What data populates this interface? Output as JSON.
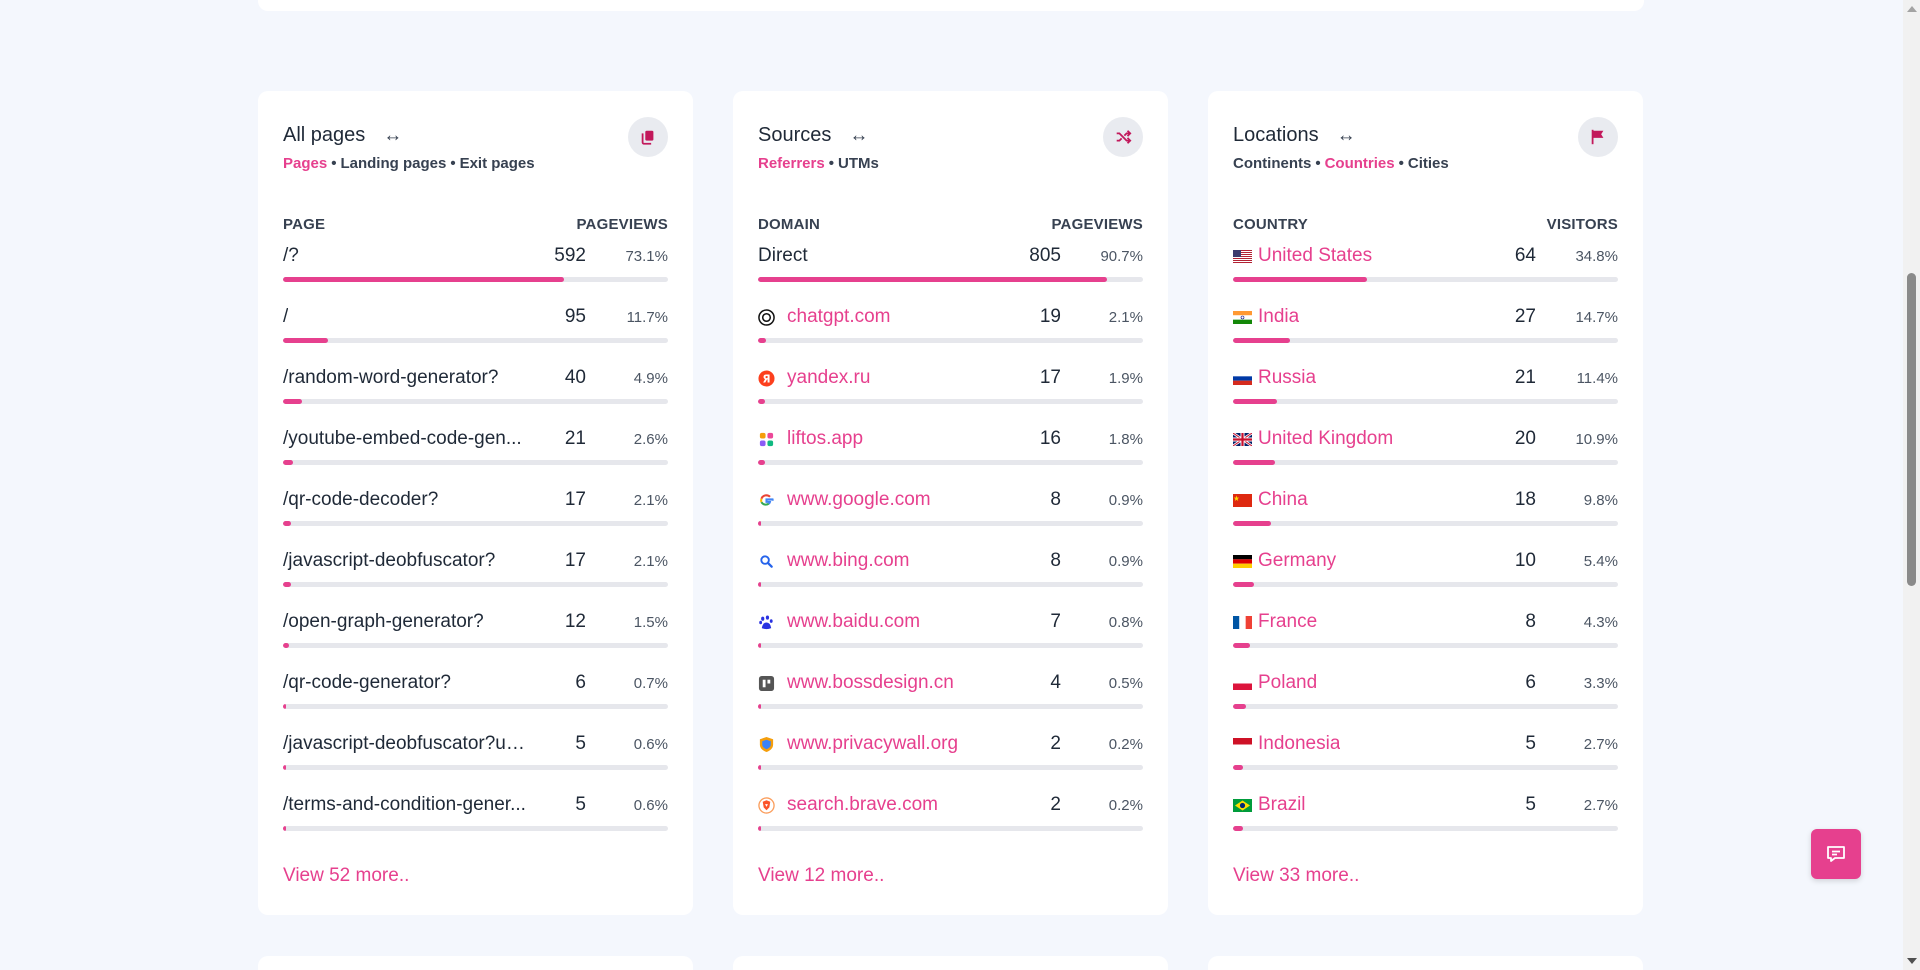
{
  "pages": {
    "title": "All pages",
    "tabs": [
      {
        "label": "Pages",
        "active": true
      },
      {
        "label": "Landing pages",
        "active": false
      },
      {
        "label": "Exit pages",
        "active": false
      }
    ],
    "col_label": "PAGE",
    "col_value": "PAGEVIEWS",
    "rows": [
      {
        "label": "/?",
        "value": "592",
        "pct": "73.1%",
        "fraction": 0.731
      },
      {
        "label": "/",
        "value": "95",
        "pct": "11.7%",
        "fraction": 0.117
      },
      {
        "label": "/random-word-generator?",
        "value": "40",
        "pct": "4.9%",
        "fraction": 0.049
      },
      {
        "label": "/youtube-embed-code-gen...",
        "value": "21",
        "pct": "2.6%",
        "fraction": 0.026
      },
      {
        "label": "/qr-code-decoder?",
        "value": "17",
        "pct": "2.1%",
        "fraction": 0.021
      },
      {
        "label": "/javascript-deobfuscator?",
        "value": "17",
        "pct": "2.1%",
        "fraction": 0.021
      },
      {
        "label": "/open-graph-generator?",
        "value": "12",
        "pct": "1.5%",
        "fraction": 0.015
      },
      {
        "label": "/qr-code-generator?",
        "value": "6",
        "pct": "0.7%",
        "fraction": 0.007
      },
      {
        "label": "/javascript-deobfuscator?ut...",
        "value": "5",
        "pct": "0.6%",
        "fraction": 0.006
      },
      {
        "label": "/terms-and-condition-gener...",
        "value": "5",
        "pct": "0.6%",
        "fraction": 0.006
      }
    ],
    "view_more": "View 52 more.."
  },
  "sources": {
    "title": "Sources",
    "tabs": [
      {
        "label": "Referrers",
        "active": true
      },
      {
        "label": "UTMs",
        "active": false
      }
    ],
    "col_label": "DOMAIN",
    "col_value": "PAGEVIEWS",
    "rows": [
      {
        "label": "Direct",
        "value": "805",
        "pct": "90.7%",
        "fraction": 0.907,
        "icon": "none",
        "link": false
      },
      {
        "label": "chatgpt.com",
        "value": "19",
        "pct": "2.1%",
        "fraction": 0.021,
        "icon": "chatgpt-icon",
        "link": true
      },
      {
        "label": "yandex.ru",
        "value": "17",
        "pct": "1.9%",
        "fraction": 0.019,
        "icon": "yandex-icon",
        "link": true
      },
      {
        "label": "liftos.app",
        "value": "16",
        "pct": "1.8%",
        "fraction": 0.018,
        "icon": "liftos-icon",
        "link": true
      },
      {
        "label": "www.google.com",
        "value": "8",
        "pct": "0.9%",
        "fraction": 0.009,
        "icon": "google-icon",
        "link": true
      },
      {
        "label": "www.bing.com",
        "value": "8",
        "pct": "0.9%",
        "fraction": 0.009,
        "icon": "bing-search-icon",
        "link": true
      },
      {
        "label": "www.baidu.com",
        "value": "7",
        "pct": "0.8%",
        "fraction": 0.008,
        "icon": "baidu-icon",
        "link": true
      },
      {
        "label": "www.bossdesign.cn",
        "value": "4",
        "pct": "0.5%",
        "fraction": 0.005,
        "icon": "bossdesign-icon",
        "link": true
      },
      {
        "label": "www.privacywall.org",
        "value": "2",
        "pct": "0.2%",
        "fraction": 0.002,
        "icon": "privacywall-icon",
        "link": true
      },
      {
        "label": "search.brave.com",
        "value": "2",
        "pct": "0.2%",
        "fraction": 0.002,
        "icon": "brave-icon",
        "link": true
      }
    ],
    "view_more": "View 12 more.."
  },
  "locations": {
    "title": "Locations",
    "tabs": [
      {
        "label": "Continents",
        "active": false
      },
      {
        "label": "Countries",
        "active": true
      },
      {
        "label": "Cities",
        "active": false
      }
    ],
    "col_label": "COUNTRY",
    "col_value": "VISITORS",
    "rows": [
      {
        "label": "United States",
        "value": "64",
        "pct": "34.8%",
        "fraction": 0.348,
        "flag": "us"
      },
      {
        "label": "India",
        "value": "27",
        "pct": "14.7%",
        "fraction": 0.147,
        "flag": "in"
      },
      {
        "label": "Russia",
        "value": "21",
        "pct": "11.4%",
        "fraction": 0.114,
        "flag": "ru"
      },
      {
        "label": "United Kingdom",
        "value": "20",
        "pct": "10.9%",
        "fraction": 0.109,
        "flag": "gb"
      },
      {
        "label": "China",
        "value": "18",
        "pct": "9.8%",
        "fraction": 0.098,
        "flag": "cn"
      },
      {
        "label": "Germany",
        "value": "10",
        "pct": "5.4%",
        "fraction": 0.054,
        "flag": "de"
      },
      {
        "label": "France",
        "value": "8",
        "pct": "4.3%",
        "fraction": 0.043,
        "flag": "fr"
      },
      {
        "label": "Poland",
        "value": "6",
        "pct": "3.3%",
        "fraction": 0.033,
        "flag": "pl"
      },
      {
        "label": "Indonesia",
        "value": "5",
        "pct": "2.7%",
        "fraction": 0.027,
        "flag": "id"
      },
      {
        "label": "Brazil",
        "value": "5",
        "pct": "2.7%",
        "fraction": 0.027,
        "flag": "br"
      }
    ],
    "view_more": "View 33 more.."
  },
  "colors": {
    "accent": "#e6408e",
    "track": "#e6e7ec",
    "background": "#f4f7fd"
  }
}
